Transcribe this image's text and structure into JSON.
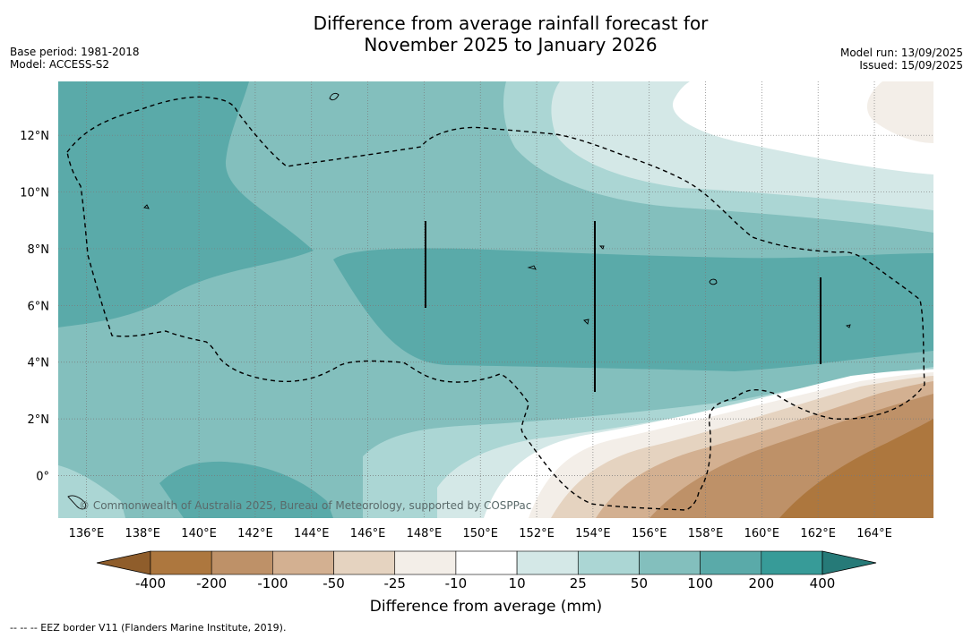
{
  "header": {
    "title_line1": "Difference from average rainfall forecast for",
    "title_line2": "November 2025 to January 2026",
    "base_period": "Base period: 1981-2018",
    "model": "Model: ACCESS-S2",
    "model_run": "Model run: 13/09/2025",
    "issued": "Issued: 15/09/2025"
  },
  "map": {
    "copyright": "© Commonwealth of Australia 2025, Bureau of Meteorology, supported by COSPPac",
    "lon_labels": [
      "136°E",
      "138°E",
      "140°E",
      "142°E",
      "144°E",
      "146°E",
      "148°E",
      "150°E",
      "152°E",
      "154°E",
      "156°E",
      "158°E",
      "160°E",
      "162°E",
      "164°E"
    ],
    "lat_labels": [
      "12°N",
      "10°N",
      "8°N",
      "6°N",
      "4°N",
      "2°N",
      "0°"
    ],
    "lon_range": [
      135,
      166.1
    ],
    "lat_range": [
      -1.5,
      13.9
    ],
    "graticule": "dotted",
    "feature_icons": [
      "coastline-icon",
      "eez-border-icon",
      "longitude-bar-icon"
    ]
  },
  "colorbar": {
    "title": "Difference from average (mm)",
    "tick_labels": [
      "-400",
      "-200",
      "-100",
      "-50",
      "-25",
      "-10",
      "10",
      "25",
      "50",
      "100",
      "200",
      "400"
    ],
    "colors": [
      "#8f5d2b",
      "#ad773e",
      "#be9168",
      "#d3b091",
      "#e5d3c0",
      "#f3eee8",
      "#ffffff",
      "#d4e8e7",
      "#abd6d4",
      "#83bfbd",
      "#5aaaa9",
      "#379b98",
      "#267a78"
    ]
  },
  "footnote": "--  --  -- EEZ border V11 (Flanders Marine Institute, 2019)."
}
